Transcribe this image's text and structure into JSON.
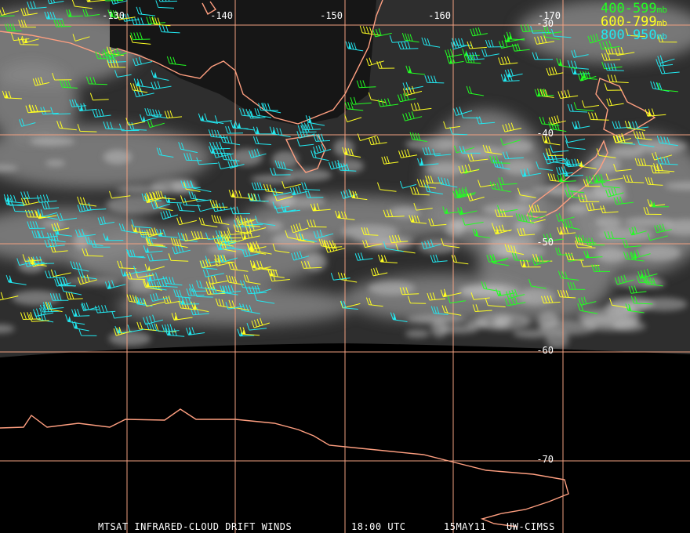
{
  "map": {
    "longitude_labels": [
      "-130",
      "-140",
      "-150",
      "-160",
      "-170"
    ],
    "latitude_labels": [
      "-30",
      "-40",
      "-50",
      "-60",
      "-70"
    ],
    "legend": [
      {
        "range": "400-599",
        "unit": "mb",
        "color": "#22ff22"
      },
      {
        "range": "600-799",
        "unit": "mb",
        "color": "#ffff22"
      },
      {
        "range": "800-950",
        "unit": "mb",
        "color": "#22e8f0"
      }
    ],
    "footer": [
      "MTSAT INFRARED-CLOUD DRIFT WINDS",
      "18:00 UTC",
      "15MAY11",
      "UW-CIMSS"
    ]
  }
}
